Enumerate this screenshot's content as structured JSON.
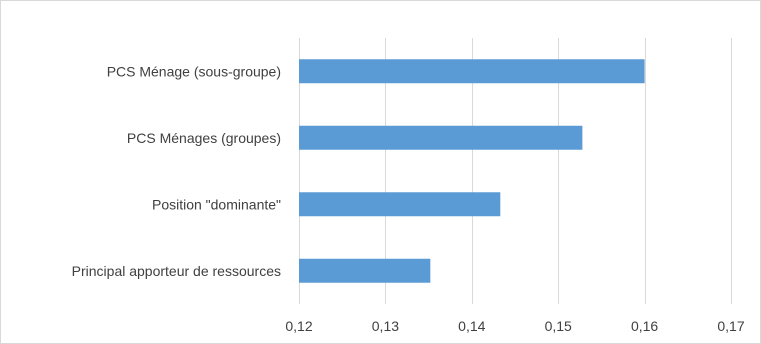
{
  "chart_data": {
    "type": "bar",
    "orientation": "horizontal",
    "categories": [
      "PCS Ménage (sous-groupe)",
      "PCS Ménages (groupes)",
      "Position \"dominante\"",
      "Principal apporteur de ressources"
    ],
    "values": [
      0.16,
      0.1528,
      0.1433,
      0.1352
    ],
    "xlim": [
      0.12,
      0.17
    ],
    "x_ticks": [
      "0,12",
      "0,13",
      "0,14",
      "0,15",
      "0,16",
      "0,17"
    ],
    "x_tick_values": [
      0.12,
      0.13,
      0.14,
      0.15,
      0.16,
      0.17
    ],
    "grid": "vertical",
    "legend": "none",
    "title": "",
    "xlabel": "",
    "ylabel": "",
    "bar_color": "#5b9bd5",
    "grid_color": "#d9d9d9"
  }
}
